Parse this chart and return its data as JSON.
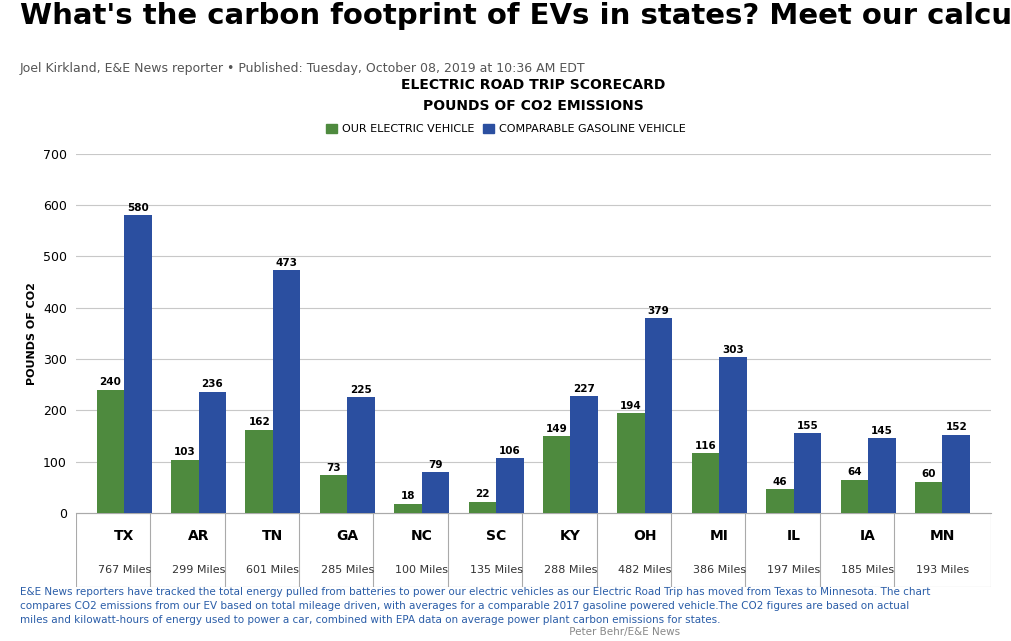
{
  "title": "What's the carbon footprint of EVs in states? Meet our calculator",
  "byline": "Joel Kirkland, E&E News reporter • Published: Tuesday, October 08, 2019 at 10:36 AM EDT",
  "chart_title_line1": "ELECTRIC ROAD TRIP SCORECARD",
  "chart_title_line2": "POUNDS OF CO2 EMISSIONS",
  "legend_ev": "OUR ELECTRIC VEHICLE",
  "legend_gas": "COMPARABLE GASOLINE VEHICLE",
  "ylabel": "POUNDS OF CO2",
  "states": [
    "TX",
    "AR",
    "TN",
    "GA",
    "NC",
    "SC",
    "KY",
    "OH",
    "MI",
    "IL",
    "IA",
    "MN"
  ],
  "miles": [
    "767 Miles",
    "299 Miles",
    "601 Miles",
    "285 Miles",
    "100 Miles",
    "135 Miles",
    "288 Miles",
    "482 Miles",
    "386 Miles",
    "197 Miles",
    "185 Miles",
    "193 Miles"
  ],
  "ev_values": [
    240,
    103,
    162,
    73,
    18,
    22,
    149,
    194,
    116,
    46,
    64,
    60
  ],
  "gas_values": [
    580,
    236,
    473,
    225,
    79,
    106,
    227,
    379,
    303,
    155,
    145,
    152
  ],
  "ev_color": "#4e8a3e",
  "gas_color": "#2b4fa0",
  "ylim": [
    0,
    700
  ],
  "yticks": [
    0,
    100,
    200,
    300,
    400,
    500,
    600,
    700
  ],
  "background_color": "#ffffff",
  "grid_color": "#c8c8c8",
  "title_fontsize": 21,
  "byline_fontsize": 9,
  "chart_title_fontsize": 10,
  "bar_label_fontsize": 7.5,
  "ylabel_fontsize": 8,
  "tick_fontsize": 9,
  "state_fontsize": 10,
  "miles_fontsize": 8,
  "legend_fontsize": 8,
  "footer_fontsize": 7.5,
  "footer_text": "E&E News reporters have tracked the total energy pulled from batteries to power our electric vehicles as our Electric Road Trip has moved from Texas to Minnesota. The chart\ncompares CO2 emissions from our EV based on total mileage driven, with averages for a comparable 2017 gasoline powered vehicle.The CO2 figures are based on actual\nmiles and kilowatt-hours of energy used to power a car, combined with EPA data on average power plant carbon emissions for states.",
  "footer_credit": " Peter Behr/E&E News",
  "footer_text_color": "#2a5da8",
  "footer_credit_color": "#888888",
  "byline_color": "#555555",
  "title_color": "#000000",
  "bar_width": 0.37
}
